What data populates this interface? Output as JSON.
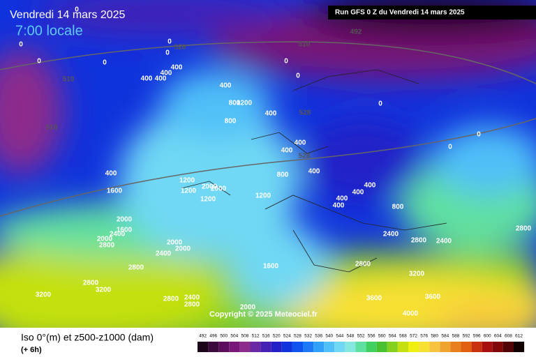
{
  "header": {
    "date": "Vendredi 14 mars 2025",
    "time": "7:00 locale",
    "run": "Run GFS 0 Z du Vendredi 14 mars 2025"
  },
  "footer": {
    "title": "Iso 0°(m) et z500-z1000 (dam)",
    "step": "(+ 6h)",
    "copyright": "Copyright © 2025 Meteociel.fr"
  },
  "legend": {
    "labels": [
      "492",
      "496",
      "500",
      "504",
      "508",
      "512",
      "516",
      "520",
      "524",
      "528",
      "532",
      "536",
      "540",
      "544",
      "548",
      "552",
      "556",
      "560",
      "564",
      "568",
      "572",
      "576",
      "580",
      "584",
      "588",
      "592",
      "596",
      "600",
      "604",
      "608",
      "612"
    ],
    "colors": [
      "#1a0618",
      "#3c0a3c",
      "#5c0c5c",
      "#781878",
      "#8c2c8c",
      "#6a28a4",
      "#4420b4",
      "#2420c8",
      "#1032dc",
      "#1052f0",
      "#1c7af8",
      "#30a0f8",
      "#50c0f8",
      "#70d8f4",
      "#84e8e0",
      "#60e0a0",
      "#40d060",
      "#48c030",
      "#84d020",
      "#c4e010",
      "#f0f010",
      "#f8e030",
      "#f8c440",
      "#f0a430",
      "#e88020",
      "#e06010",
      "#c83010",
      "#a81010",
      "#800808",
      "#500404",
      "#100000"
    ]
  },
  "map": {
    "iso0_labels": [
      "0",
      "0",
      "0",
      "0",
      "0",
      "0",
      "0",
      "400",
      "400",
      "400",
      "0",
      "400",
      "400",
      "800",
      "1200",
      "400",
      "800",
      "400",
      "400",
      "0",
      "0",
      "0",
      "400",
      "400",
      "800",
      "400",
      "400",
      "400",
      "400",
      "800",
      "1600",
      "1200",
      "1200",
      "2000",
      "2000",
      "1200",
      "1200",
      "1600",
      "2400",
      "2000",
      "2000",
      "2800",
      "2000",
      "2000",
      "2400",
      "2800",
      "2800",
      "3200",
      "3200",
      "2800",
      "2400",
      "1600",
      "2000",
      "2800",
      "2800",
      "2400",
      "3200",
      "2800",
      "2400",
      "2800",
      "4000",
      "3600",
      "3600"
    ],
    "contours": [
      "492",
      "510",
      "510",
      "510",
      "528",
      "528",
      "528"
    ]
  }
}
